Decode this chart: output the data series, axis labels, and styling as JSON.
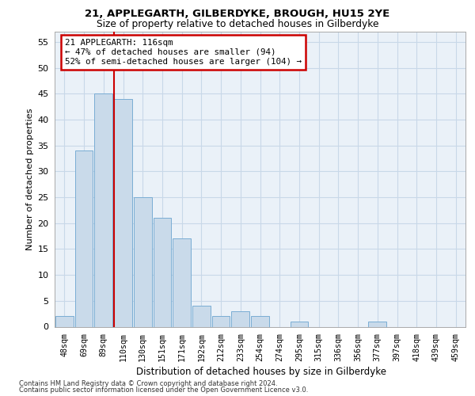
{
  "title1": "21, APPLEGARTH, GILBERDYKE, BROUGH, HU15 2YE",
  "title2": "Size of property relative to detached houses in Gilberdyke",
  "xlabel": "Distribution of detached houses by size in Gilberdyke",
  "ylabel": "Number of detached properties",
  "categories": [
    "48sqm",
    "69sqm",
    "89sqm",
    "110sqm",
    "130sqm",
    "151sqm",
    "171sqm",
    "192sqm",
    "212sqm",
    "233sqm",
    "254sqm",
    "274sqm",
    "295sqm",
    "315sqm",
    "336sqm",
    "356sqm",
    "377sqm",
    "397sqm",
    "418sqm",
    "439sqm",
    "459sqm"
  ],
  "values": [
    2,
    34,
    45,
    44,
    25,
    21,
    17,
    4,
    2,
    3,
    2,
    0,
    1,
    0,
    0,
    0,
    1,
    0,
    0,
    0,
    0
  ],
  "bar_color": "#c9daea",
  "bar_edge_color": "#7aadd4",
  "highlight_line_color": "#cc0000",
  "annotation_text": "21 APPLEGARTH: 116sqm\n← 47% of detached houses are smaller (94)\n52% of semi-detached houses are larger (104) →",
  "annotation_box_color": "#ffffff",
  "annotation_box_edge": "#cc0000",
  "ylim": [
    0,
    57
  ],
  "yticks": [
    0,
    5,
    10,
    15,
    20,
    25,
    30,
    35,
    40,
    45,
    50,
    55
  ],
  "grid_color": "#c8d8e8",
  "background_color": "#eaf1f8",
  "footer1": "Contains HM Land Registry data © Crown copyright and database right 2024.",
  "footer2": "Contains public sector information licensed under the Open Government Licence v3.0."
}
